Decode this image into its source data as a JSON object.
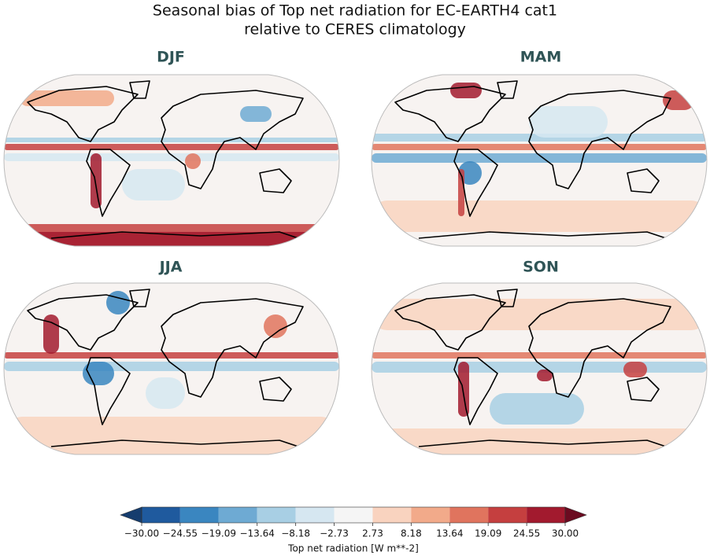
{
  "figure": {
    "title": [
      "Seasonal bias of Top net radiation for EC-EARTH4 cat1",
      "relative to CERES climatology"
    ],
    "panels": [
      {
        "label": "DJF"
      },
      {
        "label": "MAM"
      },
      {
        "label": "JJA"
      },
      {
        "label": "SON"
      }
    ],
    "colorbar": {
      "label": "Top net radiation [W m**-2]",
      "ticks": [
        {
          "value": -30,
          "label": "−30.00"
        },
        {
          "value": -24.55,
          "label": "−24.55"
        },
        {
          "value": -19.09,
          "label": "−19.09"
        },
        {
          "value": -13.64,
          "label": "−13.64"
        },
        {
          "value": -8.18,
          "label": "−8.18"
        },
        {
          "value": -2.73,
          "label": "−2.73"
        },
        {
          "value": 2.73,
          "label": "2.73"
        },
        {
          "value": 8.18,
          "label": "8.18"
        },
        {
          "value": 13.64,
          "label": "13.64"
        },
        {
          "value": 19.09,
          "label": "19.09"
        },
        {
          "value": 24.55,
          "label": "24.55"
        },
        {
          "value": 30,
          "label": "30.00"
        }
      ],
      "colors": [
        "#1f5a9e",
        "#3a86c0",
        "#6eaad3",
        "#a8cfe4",
        "#d6e7f1",
        "#f5f5f5",
        "#f9d3bf",
        "#f2aa8a",
        "#e0745e",
        "#c53f3f",
        "#a21a2e"
      ],
      "under_color": "#163d6e",
      "over_color": "#6b0b20"
    }
  }
}
